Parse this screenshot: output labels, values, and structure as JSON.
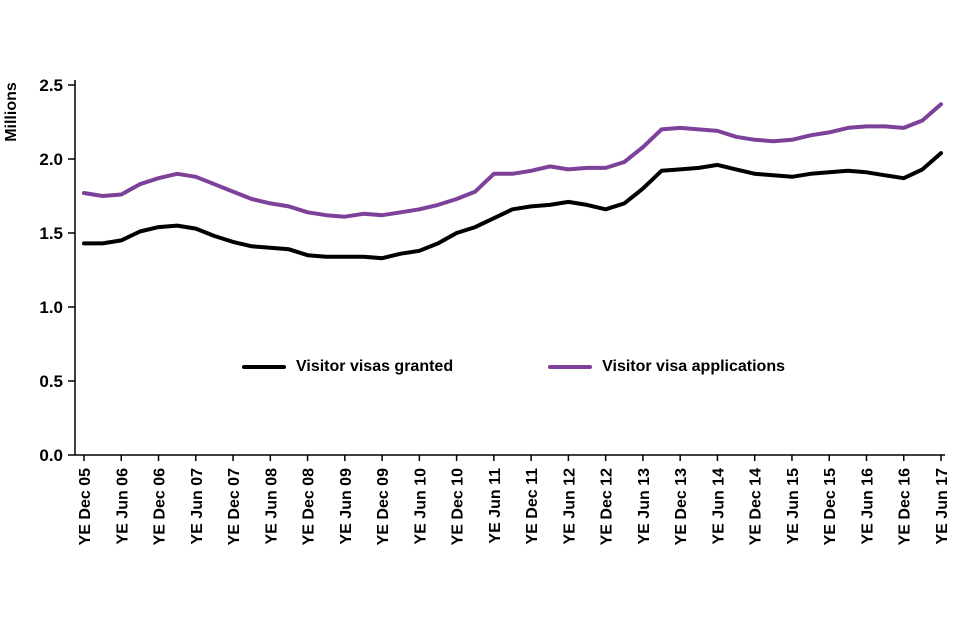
{
  "chart_data": {
    "type": "line",
    "title": "",
    "ylabel": "Millions",
    "xlabel": "",
    "ylim": [
      0,
      2.5
    ],
    "yticks": [
      "0.0",
      "0.5",
      "1.0",
      "1.5",
      "2.0",
      "2.5"
    ],
    "grid": false,
    "legend_position": "inside-center",
    "axis_color": "#000000",
    "x_tick_labels": [
      "YE Dec 05",
      "YE Jun 06",
      "YE Dec 06",
      "YE Jun 07",
      "YE Dec 07",
      "YE Jun 08",
      "YE Dec 08",
      "YE Jun 09",
      "YE Dec 09",
      "YE Jun 10",
      "YE Dec 10",
      "YE Jun 11",
      "YE Dec 11",
      "YE Jun 12",
      "YE Dec 12",
      "YE Jun 13",
      "YE Dec 13",
      "YE Jun 14",
      "YE Dec 14",
      "YE Jun 15",
      "YE Dec 15",
      "YE Jun 16",
      "YE Dec 16",
      "YE Jun 17"
    ],
    "x_note": "quarterly rolling-year data points, tick labels every 2nd point",
    "series": [
      {
        "name": "Visitor visas granted",
        "color": "#000000",
        "values": [
          1.43,
          1.43,
          1.45,
          1.51,
          1.54,
          1.55,
          1.53,
          1.48,
          1.44,
          1.41,
          1.4,
          1.39,
          1.35,
          1.34,
          1.34,
          1.34,
          1.33,
          1.36,
          1.38,
          1.43,
          1.5,
          1.54,
          1.6,
          1.66,
          1.68,
          1.69,
          1.71,
          1.69,
          1.66,
          1.7,
          1.8,
          1.92,
          1.93,
          1.94,
          1.96,
          1.93,
          1.9,
          1.89,
          1.88,
          1.9,
          1.91,
          1.92,
          1.91,
          1.89,
          1.87,
          1.93,
          2.04
        ]
      },
      {
        "name": "Visitor visa applications",
        "color": "#7d4199",
        "values": [
          1.77,
          1.75,
          1.76,
          1.83,
          1.87,
          1.9,
          1.88,
          1.83,
          1.78,
          1.73,
          1.7,
          1.68,
          1.64,
          1.62,
          1.61,
          1.63,
          1.62,
          1.64,
          1.66,
          1.69,
          1.73,
          1.78,
          1.9,
          1.9,
          1.92,
          1.95,
          1.93,
          1.94,
          1.94,
          1.98,
          2.08,
          2.2,
          2.21,
          2.2,
          2.19,
          2.15,
          2.13,
          2.12,
          2.13,
          2.16,
          2.18,
          2.21,
          2.22,
          2.22,
          2.21,
          2.26,
          2.37
        ]
      }
    ]
  }
}
